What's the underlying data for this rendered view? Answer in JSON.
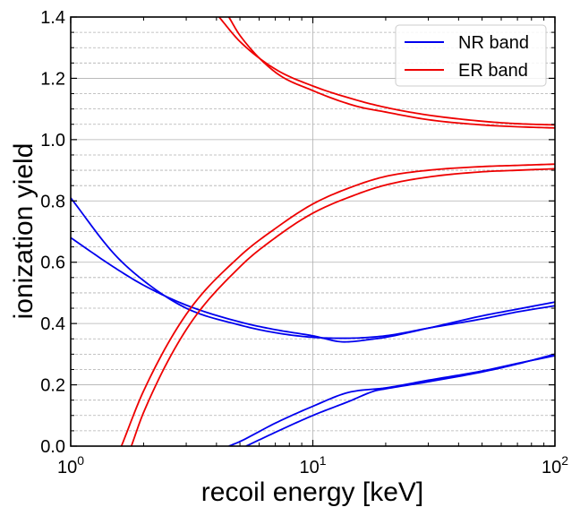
{
  "chart_data": {
    "type": "line",
    "xlabel": "recoil energy [keV]",
    "ylabel": "ionization yield",
    "xscale": "log",
    "xlim": [
      1,
      100
    ],
    "ylim": [
      0,
      1.4
    ],
    "grid": true,
    "legend_position": "top-right",
    "x_ticks": [
      {
        "value": 1,
        "base": "10",
        "exp": "0"
      },
      {
        "value": 10,
        "base": "10",
        "exp": "1"
      },
      {
        "value": 100,
        "base": "10",
        "exp": "2"
      }
    ],
    "y_ticks": [
      {
        "value": 0.0,
        "label": "0.0"
      },
      {
        "value": 0.2,
        "label": "0.2"
      },
      {
        "value": 0.4,
        "label": "0.4"
      },
      {
        "value": 0.6,
        "label": "0.6"
      },
      {
        "value": 0.8,
        "label": "0.8"
      },
      {
        "value": 1.0,
        "label": "1.0"
      },
      {
        "value": 1.2,
        "label": "1.2"
      },
      {
        "value": 1.4,
        "label": "1.4"
      }
    ],
    "series": [
      {
        "name": "NR band",
        "color": "#0000ee",
        "x": [
          1,
          1.5,
          2,
          3,
          5,
          7,
          10,
          13.5,
          20,
          30,
          50,
          70,
          100
        ],
        "y": [
          0.81,
          0.63,
          0.54,
          0.45,
          0.395,
          0.37,
          0.355,
          0.352,
          0.36,
          0.385,
          0.415,
          0.438,
          0.458
        ]
      },
      {
        "name": "NR band",
        "color": "#0000ee",
        "x": [
          1,
          1.5,
          2,
          3,
          5,
          7,
          10,
          13.5,
          18,
          20,
          30,
          50,
          70,
          100
        ],
        "y": [
          0.68,
          0.585,
          0.525,
          0.46,
          0.405,
          0.38,
          0.36,
          0.34,
          0.35,
          0.355,
          0.385,
          0.425,
          0.447,
          0.47
        ]
      },
      {
        "name": "NR band",
        "color": "#0000ee",
        "x": [
          4.5,
          5,
          7,
          10,
          14,
          20,
          30,
          50,
          70,
          100
        ],
        "y": [
          0.0,
          0.015,
          0.075,
          0.13,
          0.175,
          0.19,
          0.215,
          0.245,
          0.27,
          0.295
        ]
      },
      {
        "name": "NR band",
        "color": "#0000ee",
        "x": [
          5.3,
          7,
          10,
          14,
          18,
          20,
          30,
          50,
          70,
          100
        ],
        "y": [
          0.0,
          0.045,
          0.1,
          0.145,
          0.18,
          0.187,
          0.21,
          0.242,
          0.268,
          0.3
        ]
      },
      {
        "name": "ER band",
        "color": "#ee0000",
        "x": [
          1.62,
          2,
          3,
          5,
          7,
          10,
          15,
          20,
          30,
          50,
          70,
          100
        ],
        "y": [
          0.0,
          0.18,
          0.43,
          0.62,
          0.71,
          0.79,
          0.85,
          0.88,
          0.9,
          0.912,
          0.916,
          0.92
        ]
      },
      {
        "name": "ER band",
        "color": "#ee0000",
        "x": [
          1.78,
          2,
          3,
          5,
          7,
          10,
          15,
          20,
          30,
          50,
          70,
          100
        ],
        "y": [
          0.0,
          0.11,
          0.38,
          0.585,
          0.68,
          0.76,
          0.82,
          0.852,
          0.878,
          0.895,
          0.9,
          0.905
        ]
      },
      {
        "name": "ER band",
        "color": "#ee0000",
        "x": [
          4.1,
          5,
          7,
          10,
          15,
          20,
          30,
          50,
          70,
          100
        ],
        "y": [
          1.4,
          1.32,
          1.23,
          1.175,
          1.13,
          1.105,
          1.08,
          1.06,
          1.052,
          1.048
        ]
      },
      {
        "name": "ER band",
        "color": "#ee0000",
        "x": [
          4.5,
          5,
          7,
          10,
          15,
          20,
          30,
          50,
          70,
          100
        ],
        "y": [
          1.4,
          1.34,
          1.22,
          1.16,
          1.11,
          1.09,
          1.065,
          1.048,
          1.042,
          1.038
        ]
      }
    ],
    "legend": [
      {
        "label": "NR band",
        "color": "#0000ee"
      },
      {
        "label": "ER band",
        "color": "#ee0000"
      }
    ]
  }
}
